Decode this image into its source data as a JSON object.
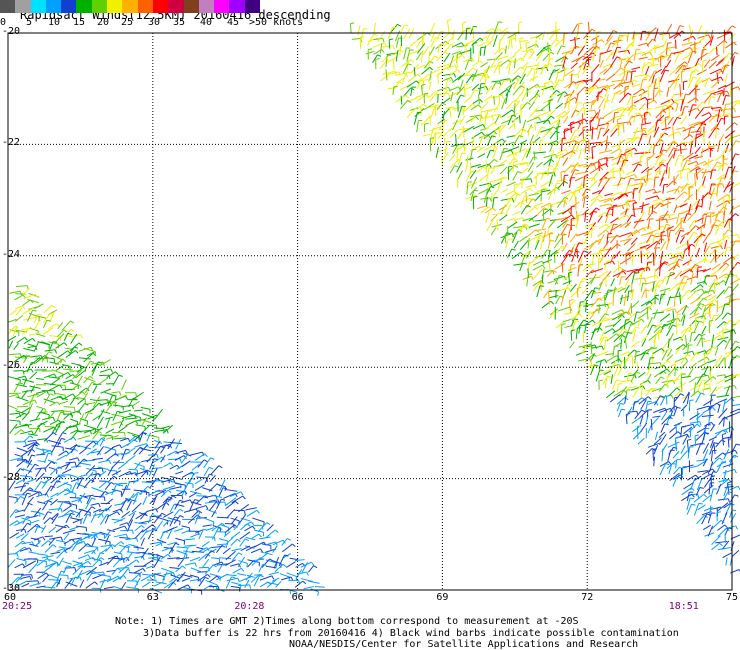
{
  "title": "Rapidsact Winds(12.5KM) 20160416 descending",
  "legend": {
    "labels": [
      "0",
      "5",
      "10",
      "15",
      "20",
      "25",
      "30",
      "35",
      "40",
      "45",
      ">50 knots"
    ],
    "colors": [
      "#555555",
      "#a0a0a0",
      "#00e0ff",
      "#00a0ff",
      "#1040d0",
      "#00b000",
      "#60d000",
      "#f0f000",
      "#ffb000",
      "#ff6000",
      "#ff0000",
      "#d00040",
      "#804020",
      "#c080c0",
      "#ff00ff",
      "#a000ff",
      "#400080"
    ]
  },
  "map": {
    "lat_range": [
      -30,
      -20
    ],
    "lon_range": [
      60,
      75
    ],
    "lat_ticks": [
      "-20",
      "-22",
      "-24",
      "-26",
      "-28",
      "-30"
    ],
    "lon_ticks": [
      "60",
      "63",
      "66",
      "69",
      "72",
      "75"
    ],
    "grid": true,
    "swaths": [
      {
        "name": "left-swath",
        "polygon": [
          [
            60,
            -24.3
          ],
          [
            60,
            -30
          ],
          [
            66.6,
            -30
          ]
        ]
      },
      {
        "name": "right-swath",
        "polygon": [
          [
            67.0,
            -20
          ],
          [
            75,
            -20
          ],
          [
            75,
            -29.8
          ]
        ]
      }
    ],
    "time_labels": [
      {
        "text": "20:25",
        "lon": 60
      },
      {
        "text": "20:28",
        "lon": 65
      },
      {
        "text": "18:51",
        "lon": 74
      }
    ]
  },
  "notes": [
    "Note: 1) Times are GMT 2)Times along bottom correspond to measurement at -20S",
    "3)Data buffer is 22 hrs from 20160416 4) Black wind barbs indicate possible contamination",
    "NOAA/NESDIS/Center for Satellite Applications and Research"
  ]
}
